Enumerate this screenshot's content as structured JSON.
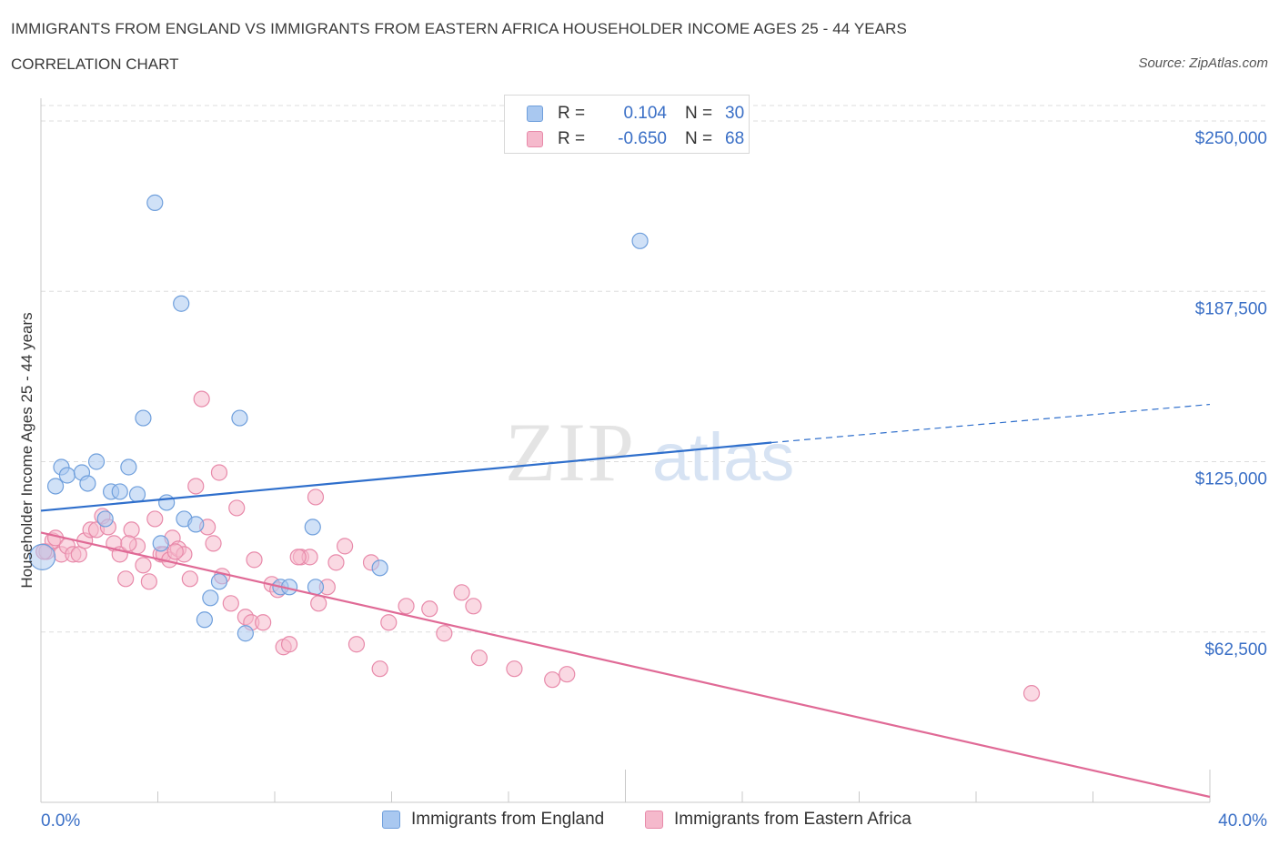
{
  "header": {
    "title": "IMMIGRANTS FROM ENGLAND VS IMMIGRANTS FROM EASTERN AFRICA HOUSEHOLDER INCOME AGES 25 - 44 YEARS",
    "subtitle": "CORRELATION CHART",
    "source": "Source: ZipAtlas.com"
  },
  "legend": {
    "rows": [
      {
        "r_label": "R =",
        "r_value": "0.104",
        "n_label": "N =",
        "n_value": "30"
      },
      {
        "r_label": "R =",
        "r_value": "-0.650",
        "n_label": "N =",
        "n_value": "68"
      }
    ]
  },
  "bottom_legend": {
    "england": "Immigrants from England",
    "eastern_africa": "Immigrants from Eastern Africa"
  },
  "watermark": {
    "zip": "ZIP",
    "atlas": "atlas"
  },
  "colors": {
    "england_fill": "#a9c8f0",
    "england_stroke": "#6f9fdc",
    "england_line": "#2f6fcc",
    "africa_fill": "#f5b9cc",
    "africa_stroke": "#e88aaa",
    "africa_line": "#e06a96",
    "grid": "#dddddd",
    "axis_text": "#3a6fc6"
  },
  "chart_data": {
    "type": "scatter",
    "ylabel": "Householder Income Ages 25 - 44 years",
    "xlabel": "",
    "xlim": [
      0,
      40
    ],
    "ylim": [
      0,
      250000
    ],
    "x_tick_labels": [
      "0.0%",
      "40.0%"
    ],
    "y_ticks": [
      62500,
      125000,
      187500,
      250000
    ],
    "y_tick_labels": [
      "$62,500",
      "$125,000",
      "$187,500",
      "$250,000"
    ],
    "grid": true,
    "legend_position": "top-center",
    "series": [
      {
        "name": "Immigrants from England",
        "points": [
          [
            0.05,
            90000
          ],
          [
            0.5,
            116000
          ],
          [
            0.7,
            123000
          ],
          [
            0.9,
            120000
          ],
          [
            1.4,
            121000
          ],
          [
            1.6,
            117000
          ],
          [
            1.9,
            125000
          ],
          [
            2.2,
            104000
          ],
          [
            2.4,
            114000
          ],
          [
            2.7,
            114000
          ],
          [
            3.0,
            123000
          ],
          [
            3.3,
            113000
          ],
          [
            3.5,
            141000
          ],
          [
            3.9,
            220000
          ],
          [
            4.1,
            95000
          ],
          [
            4.3,
            110000
          ],
          [
            4.8,
            183000
          ],
          [
            4.9,
            104000
          ],
          [
            5.3,
            102000
          ],
          [
            5.6,
            67000
          ],
          [
            5.8,
            75000
          ],
          [
            6.1,
            81000
          ],
          [
            6.8,
            141000
          ],
          [
            7.0,
            62000
          ],
          [
            8.2,
            79000
          ],
          [
            8.5,
            79000
          ],
          [
            9.3,
            101000
          ],
          [
            9.4,
            79000
          ],
          [
            11.6,
            86000
          ],
          [
            20.5,
            206000
          ]
        ],
        "trend": {
          "x": [
            0,
            25
          ],
          "y": [
            107000,
            132000
          ]
        },
        "trend_extension": {
          "x": [
            25,
            40
          ],
          "y": [
            132000,
            146000
          ]
        }
      },
      {
        "name": "Immigrants from Eastern Africa",
        "points": [
          [
            0.2,
            92000
          ],
          [
            0.4,
            96000
          ],
          [
            0.5,
            97000
          ],
          [
            0.7,
            91000
          ],
          [
            0.9,
            94000
          ],
          [
            1.1,
            91000
          ],
          [
            1.3,
            91000
          ],
          [
            1.5,
            96000
          ],
          [
            1.7,
            100000
          ],
          [
            1.9,
            100000
          ],
          [
            2.1,
            105000
          ],
          [
            2.3,
            101000
          ],
          [
            2.5,
            95000
          ],
          [
            2.7,
            91000
          ],
          [
            2.9,
            82000
          ],
          [
            3.1,
            100000
          ],
          [
            3.3,
            94000
          ],
          [
            3.5,
            87000
          ],
          [
            3.7,
            81000
          ],
          [
            3.9,
            104000
          ],
          [
            4.1,
            91000
          ],
          [
            4.2,
            91000
          ],
          [
            4.4,
            89000
          ],
          [
            4.5,
            97000
          ],
          [
            4.7,
            93000
          ],
          [
            4.9,
            91000
          ],
          [
            5.1,
            82000
          ],
          [
            5.3,
            116000
          ],
          [
            5.5,
            148000
          ],
          [
            5.7,
            101000
          ],
          [
            5.9,
            95000
          ],
          [
            6.1,
            121000
          ],
          [
            6.2,
            83000
          ],
          [
            6.5,
            73000
          ],
          [
            6.7,
            108000
          ],
          [
            7.0,
            68000
          ],
          [
            7.2,
            66000
          ],
          [
            7.3,
            89000
          ],
          [
            7.6,
            66000
          ],
          [
            7.9,
            80000
          ],
          [
            8.1,
            78000
          ],
          [
            8.3,
            57000
          ],
          [
            8.5,
            58000
          ],
          [
            8.9,
            90000
          ],
          [
            9.2,
            90000
          ],
          [
            9.4,
            112000
          ],
          [
            9.5,
            73000
          ],
          [
            9.8,
            79000
          ],
          [
            10.1,
            88000
          ],
          [
            10.4,
            94000
          ],
          [
            10.8,
            58000
          ],
          [
            11.3,
            88000
          ],
          [
            11.6,
            49000
          ],
          [
            11.9,
            66000
          ],
          [
            12.5,
            72000
          ],
          [
            13.3,
            71000
          ],
          [
            13.8,
            62000
          ],
          [
            14.4,
            77000
          ],
          [
            14.8,
            72000
          ],
          [
            15.0,
            53000
          ],
          [
            16.2,
            49000
          ],
          [
            17.5,
            45000
          ],
          [
            18.0,
            47000
          ],
          [
            33.9,
            40000
          ],
          [
            0.1,
            92000
          ],
          [
            3.0,
            95000
          ],
          [
            8.8,
            90000
          ],
          [
            4.6,
            92000
          ]
        ],
        "trend": {
          "x": [
            0,
            40
          ],
          "y": [
            99000,
            2000
          ]
        }
      }
    ]
  }
}
